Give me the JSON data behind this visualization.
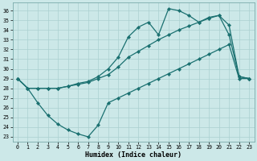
{
  "xlabel": "Humidex (Indice chaleur)",
  "xlim": [
    -0.5,
    23.5
  ],
  "ylim": [
    22.5,
    36.8
  ],
  "yticks": [
    23,
    24,
    25,
    26,
    27,
    28,
    29,
    30,
    31,
    32,
    33,
    34,
    35,
    36
  ],
  "xticks": [
    0,
    1,
    2,
    3,
    4,
    5,
    6,
    7,
    8,
    9,
    10,
    11,
    12,
    13,
    14,
    15,
    16,
    17,
    18,
    19,
    20,
    21,
    22,
    23
  ],
  "bg_color": "#cce8e8",
  "line_color": "#1a7070",
  "grid_color": "#aad0d0",
  "line1_y": [
    29.0,
    28.0,
    28.0,
    28.0,
    28.0,
    28.2,
    28.5,
    28.7,
    29.2,
    30.0,
    31.2,
    33.3,
    34.3,
    34.8,
    33.5,
    36.2,
    36.0,
    35.5,
    34.8,
    35.3,
    35.5,
    33.5,
    29.2,
    29.0
  ],
  "line2_y": [
    29.0,
    28.0,
    28.0,
    28.0,
    28.0,
    28.2,
    28.4,
    28.6,
    29.0,
    29.4,
    30.2,
    31.2,
    31.8,
    32.4,
    33.0,
    33.5,
    34.0,
    34.4,
    34.8,
    35.2,
    35.5,
    34.5,
    29.2,
    29.0
  ],
  "line3_y": [
    29.0,
    28.0,
    26.5,
    25.2,
    24.3,
    23.7,
    23.3,
    23.0,
    24.2,
    26.5,
    27.0,
    27.5,
    28.0,
    28.5,
    29.0,
    29.5,
    30.0,
    30.5,
    31.0,
    31.5,
    32.0,
    32.5,
    29.0,
    29.0
  ]
}
